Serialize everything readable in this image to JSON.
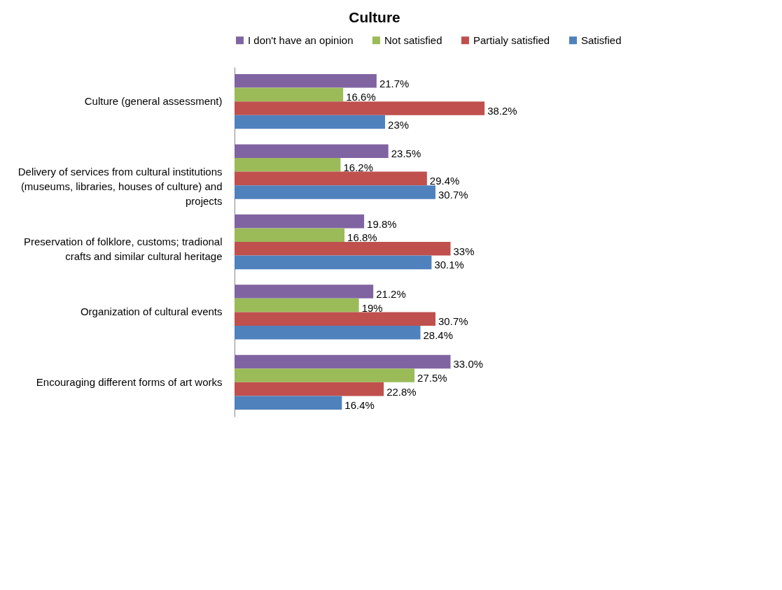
{
  "chart_data": {
    "type": "bar",
    "orientation": "horizontal",
    "title": "Culture",
    "legend": "top",
    "categories": [
      "Culture (general assessment)",
      "Delivery of services from cultural institutions (museums, libraries, houses of culture) and projects",
      "Preservation of folklore, customs; tradional crafts and similar cultural heritage",
      "Organization of cultural events",
      "Encouraging different forms of art works"
    ],
    "series": [
      {
        "name": "I don't have an opinion",
        "color": "#8064a2",
        "values": [
          21.7,
          23.5,
          19.8,
          21.2,
          33.0
        ],
        "value_labels": [
          "21.7%",
          "23.5%",
          "19.8%",
          "21.2%",
          "33.0%"
        ]
      },
      {
        "name": "Not satisfied",
        "color": "#9bbb59",
        "values": [
          16.6,
          16.2,
          16.8,
          19,
          27.5
        ],
        "value_labels": [
          "16.6%",
          "16.2%",
          "16.8%",
          "19%",
          "27.5%"
        ]
      },
      {
        "name": "Partialy satisfied",
        "color": "#c0504d",
        "values": [
          38.2,
          29.4,
          33,
          30.7,
          22.8
        ],
        "value_labels": [
          "38.2%",
          "29.4%",
          "33%",
          "30.7%",
          "22.8%"
        ]
      },
      {
        "name": "Satisfied",
        "color": "#4f81bd",
        "values": [
          23,
          30.7,
          30.1,
          28.4,
          16.4
        ],
        "value_labels": [
          "23%",
          "30.7%",
          "30.1%",
          "28.4%",
          "16.4%"
        ]
      }
    ]
  }
}
